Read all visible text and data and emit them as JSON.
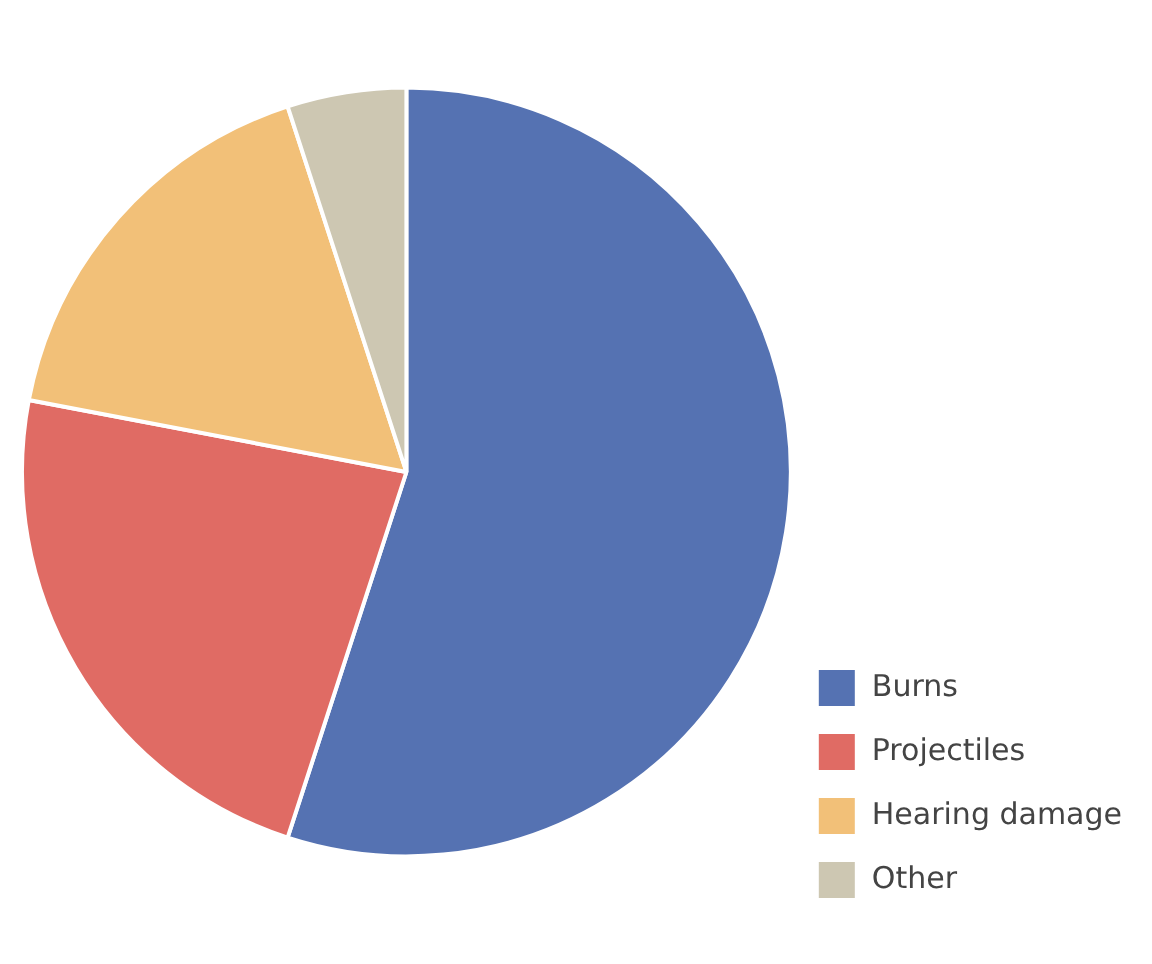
{
  "chart_data": {
    "type": "pie",
    "categories": [
      "Burns",
      "Projectiles",
      "Hearing damage",
      "Other"
    ],
    "values": [
      55,
      23,
      17,
      5
    ],
    "colors": [
      "#5572b2",
      "#e06b64",
      "#f2c078",
      "#cdc7b2"
    ],
    "legend": "bottom right"
  }
}
